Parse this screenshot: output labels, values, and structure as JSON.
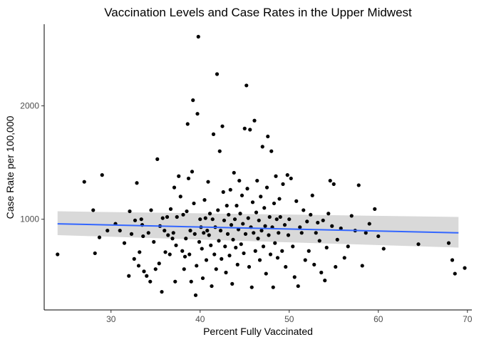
{
  "chart_data": {
    "type": "scatter",
    "title": "Vaccination Levels and Case Rates in the Upper Midwest",
    "xlabel": "Percent Fully Vaccinated",
    "ylabel": "Case Rate per 100,000",
    "xlim": [
      22.5,
      70.5
    ],
    "ylim": [
      200,
      2720
    ],
    "xticks": [
      30,
      40,
      50,
      60,
      70
    ],
    "xtick_labels": [
      "30",
      "40",
      "50",
      "60",
      "70"
    ],
    "yticks": [
      1000,
      2000
    ],
    "ytick_labels": [
      "1000",
      "2000"
    ],
    "grid": false,
    "point_color": "#000000",
    "trend": {
      "method": "linear fit with confidence band",
      "color": "#3366FF",
      "band_color": "#D9D9D9",
      "x": [
        24,
        69
      ],
      "y": [
        960,
        880
      ],
      "lower": [
        860,
        750
      ],
      "upper": [
        1070,
        1020
      ]
    },
    "points": [
      [
        24.0,
        690
      ],
      [
        27.0,
        1330
      ],
      [
        28.0,
        1080
      ],
      [
        28.2,
        700
      ],
      [
        28.7,
        840
      ],
      [
        29.0,
        1390
      ],
      [
        29.6,
        900
      ],
      [
        30.5,
        960
      ],
      [
        31.0,
        900
      ],
      [
        31.5,
        790
      ],
      [
        32.0,
        500
      ],
      [
        32.1,
        1070
      ],
      [
        32.3,
        870
      ],
      [
        32.6,
        650
      ],
      [
        32.7,
        990
      ],
      [
        32.9,
        1320
      ],
      [
        33.1,
        590
      ],
      [
        33.2,
        710
      ],
      [
        33.4,
        1000
      ],
      [
        33.5,
        950
      ],
      [
        33.6,
        850
      ],
      [
        33.7,
        540
      ],
      [
        34.0,
        500
      ],
      [
        34.2,
        880
      ],
      [
        34.4,
        450
      ],
      [
        34.5,
        1080
      ],
      [
        34.8,
        800
      ],
      [
        35.0,
        560
      ],
      [
        35.2,
        1530
      ],
      [
        35.4,
        610
      ],
      [
        35.5,
        940
      ],
      [
        35.7,
        360
      ],
      [
        35.8,
        1010
      ],
      [
        36.0,
        900
      ],
      [
        36.1,
        710
      ],
      [
        36.3,
        1020
      ],
      [
        36.4,
        860
      ],
      [
        36.6,
        690
      ],
      [
        36.7,
        1090
      ],
      [
        36.9,
        830
      ],
      [
        37.0,
        880
      ],
      [
        37.1,
        1280
      ],
      [
        37.2,
        450
      ],
      [
        37.3,
        770
      ],
      [
        37.4,
        1020
      ],
      [
        37.6,
        1380
      ],
      [
        37.8,
        1200
      ],
      [
        38.0,
        720
      ],
      [
        38.1,
        1040
      ],
      [
        38.2,
        560
      ],
      [
        38.3,
        670
      ],
      [
        38.4,
        830
      ],
      [
        38.5,
        1070
      ],
      [
        38.6,
        1840
      ],
      [
        38.7,
        1360
      ],
      [
        38.8,
        690
      ],
      [
        38.9,
        900
      ],
      [
        39.0,
        450
      ],
      [
        39.1,
        1420
      ],
      [
        39.2,
        2050
      ],
      [
        39.3,
        1140
      ],
      [
        39.4,
        870
      ],
      [
        39.5,
        330
      ],
      [
        39.6,
        590
      ],
      [
        39.7,
        1930
      ],
      [
        39.8,
        2610
      ],
      [
        39.9,
        800
      ],
      [
        40.0,
        1000
      ],
      [
        40.1,
        930
      ],
      [
        40.2,
        740
      ],
      [
        40.3,
        480
      ],
      [
        40.4,
        880
      ],
      [
        40.5,
        1170
      ],
      [
        40.6,
        1010
      ],
      [
        40.7,
        640
      ],
      [
        40.8,
        900
      ],
      [
        40.9,
        1330
      ],
      [
        41.0,
        860
      ],
      [
        41.1,
        1050
      ],
      [
        41.2,
        770
      ],
      [
        41.3,
        410
      ],
      [
        41.4,
        1000
      ],
      [
        41.5,
        1750
      ],
      [
        41.6,
        690
      ],
      [
        41.7,
        930
      ],
      [
        41.8,
        560
      ],
      [
        41.9,
        2280
      ],
      [
        42.0,
        1080
      ],
      [
        42.1,
        810
      ],
      [
        42.2,
        1600
      ],
      [
        42.3,
        900
      ],
      [
        42.4,
        650
      ],
      [
        42.5,
        1820
      ],
      [
        42.6,
        1240
      ],
      [
        42.7,
        990
      ],
      [
        42.8,
        760
      ],
      [
        42.9,
        530
      ],
      [
        43.0,
        1120
      ],
      [
        43.1,
        870
      ],
      [
        43.2,
        1040
      ],
      [
        43.3,
        680
      ],
      [
        43.4,
        1260
      ],
      [
        43.5,
        950
      ],
      [
        43.6,
        430
      ],
      [
        43.7,
        820
      ],
      [
        43.8,
        1410
      ],
      [
        43.9,
        1000
      ],
      [
        44.0,
        750
      ],
      [
        44.1,
        1120
      ],
      [
        44.2,
        600
      ],
      [
        44.3,
        910
      ],
      [
        44.4,
        1340
      ],
      [
        44.5,
        1050
      ],
      [
        44.6,
        780
      ],
      [
        44.7,
        1210
      ],
      [
        44.8,
        960
      ],
      [
        44.9,
        700
      ],
      [
        45.0,
        1800
      ],
      [
        45.1,
        870
      ],
      [
        45.2,
        2180
      ],
      [
        45.3,
        1270
      ],
      [
        45.4,
        1010
      ],
      [
        45.5,
        580
      ],
      [
        45.6,
        1790
      ],
      [
        45.7,
        930
      ],
      [
        45.8,
        400
      ],
      [
        45.9,
        1150
      ],
      [
        46.0,
        880
      ],
      [
        46.1,
        1870
      ],
      [
        46.2,
        720
      ],
      [
        46.3,
        1060
      ],
      [
        46.4,
        1340
      ],
      [
        46.5,
        830
      ],
      [
        46.6,
        990
      ],
      [
        46.7,
        640
      ],
      [
        46.8,
        1200
      ],
      [
        46.9,
        900
      ],
      [
        47.0,
        1640
      ],
      [
        47.1,
        760
      ],
      [
        47.2,
        1100
      ],
      [
        47.3,
        940
      ],
      [
        47.4,
        520
      ],
      [
        47.5,
        1280
      ],
      [
        47.6,
        1730
      ],
      [
        47.7,
        860
      ],
      [
        47.8,
        1020
      ],
      [
        47.9,
        690
      ],
      [
        48.0,
        1600
      ],
      [
        48.1,
        930
      ],
      [
        48.2,
        400
      ],
      [
        48.3,
        1140
      ],
      [
        48.4,
        790
      ],
      [
        48.5,
        1380
      ],
      [
        48.6,
        1000
      ],
      [
        48.7,
        660
      ],
      [
        48.8,
        880
      ],
      [
        48.9,
        1180
      ],
      [
        49.0,
        1020
      ],
      [
        49.2,
        720
      ],
      [
        49.3,
        1310
      ],
      [
        49.5,
        950
      ],
      [
        49.6,
        580
      ],
      [
        49.8,
        1390
      ],
      [
        49.9,
        860
      ],
      [
        50.0,
        1000
      ],
      [
        50.2,
        1360
      ],
      [
        50.4,
        760
      ],
      [
        50.6,
        490
      ],
      [
        50.8,
        1160
      ],
      [
        51.0,
        410
      ],
      [
        51.2,
        930
      ],
      [
        51.4,
        880
      ],
      [
        51.6,
        1080
      ],
      [
        51.8,
        640
      ],
      [
        52.0,
        980
      ],
      [
        52.2,
        720
      ],
      [
        52.4,
        1040
      ],
      [
        52.6,
        1210
      ],
      [
        52.8,
        600
      ],
      [
        53.0,
        880
      ],
      [
        53.2,
        970
      ],
      [
        53.4,
        810
      ],
      [
        53.6,
        530
      ],
      [
        53.8,
        990
      ],
      [
        54.0,
        460
      ],
      [
        54.2,
        750
      ],
      [
        54.4,
        1050
      ],
      [
        54.6,
        1340
      ],
      [
        54.8,
        940
      ],
      [
        55.0,
        1310
      ],
      [
        55.2,
        580
      ],
      [
        55.4,
        820
      ],
      [
        55.8,
        920
      ],
      [
        56.2,
        660
      ],
      [
        56.6,
        760
      ],
      [
        57.0,
        1030
      ],
      [
        57.4,
        900
      ],
      [
        57.8,
        1300
      ],
      [
        58.2,
        590
      ],
      [
        58.6,
        880
      ],
      [
        59.0,
        960
      ],
      [
        59.6,
        1090
      ],
      [
        60.0,
        850
      ],
      [
        60.6,
        740
      ],
      [
        64.5,
        780
      ],
      [
        67.9,
        790
      ],
      [
        68.3,
        640
      ],
      [
        68.6,
        520
      ],
      [
        69.7,
        570
      ]
    ]
  }
}
